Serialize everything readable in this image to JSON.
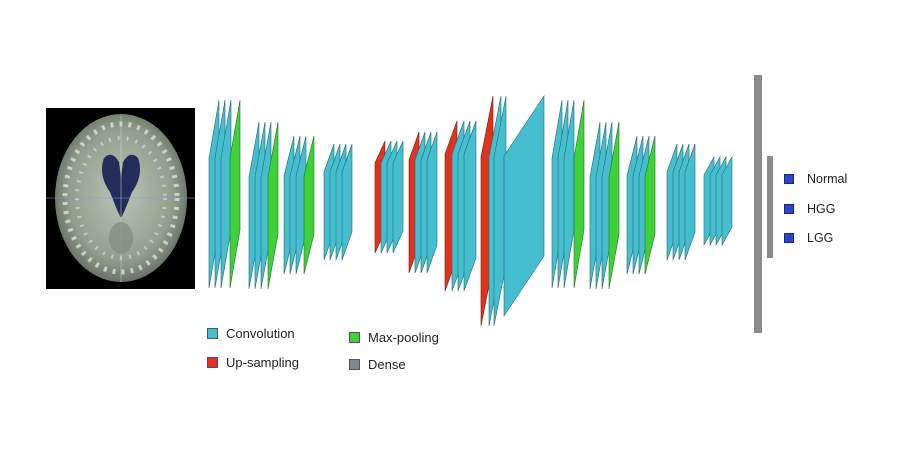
{
  "colors": {
    "convolution": "#45bfd0",
    "max_pooling": "#3fd13a",
    "up_sampling": "#e2321e",
    "dense": "#8a8a8a",
    "output_box": "#2946c8"
  },
  "legend": {
    "convolution": "Convolution",
    "max_pooling": "Max-pooling",
    "up_sampling": "Up-sampling",
    "dense": "Dense"
  },
  "outputs": {
    "normal": "Normal",
    "hgg": "HGG",
    "lgg": "LGG"
  },
  "input_image": {
    "semantic": "brain-mri-axial-slice"
  }
}
